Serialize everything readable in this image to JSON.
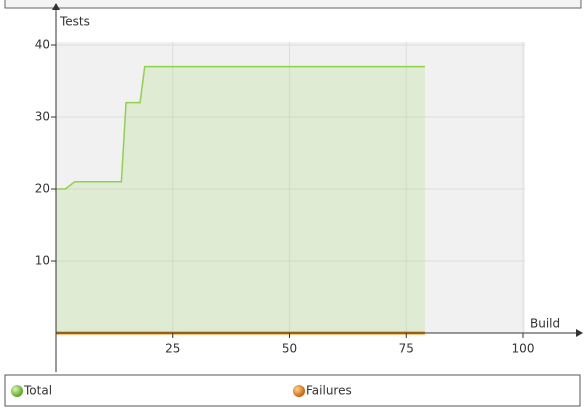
{
  "chart_data": {
    "type": "line",
    "x_label": "Build",
    "y_label": "Tests",
    "x": [
      0,
      2,
      4,
      14,
      15,
      18,
      19,
      79
    ],
    "series": [
      {
        "name": "Total",
        "color": "#8fd14f",
        "values": [
          20,
          20,
          21,
          21,
          32,
          32,
          37,
          37
        ]
      },
      {
        "name": "Failures",
        "color": "#f28c00",
        "values": [
          0,
          0,
          0,
          0,
          0,
          0,
          0,
          0
        ]
      }
    ],
    "xlim": [
      0,
      100
    ],
    "xticks": [
      25,
      50,
      75,
      100
    ],
    "ylim": [
      0,
      40
    ],
    "yticks": [
      10,
      20,
      30,
      40
    ],
    "grid": true,
    "legend": "bottom"
  }
}
